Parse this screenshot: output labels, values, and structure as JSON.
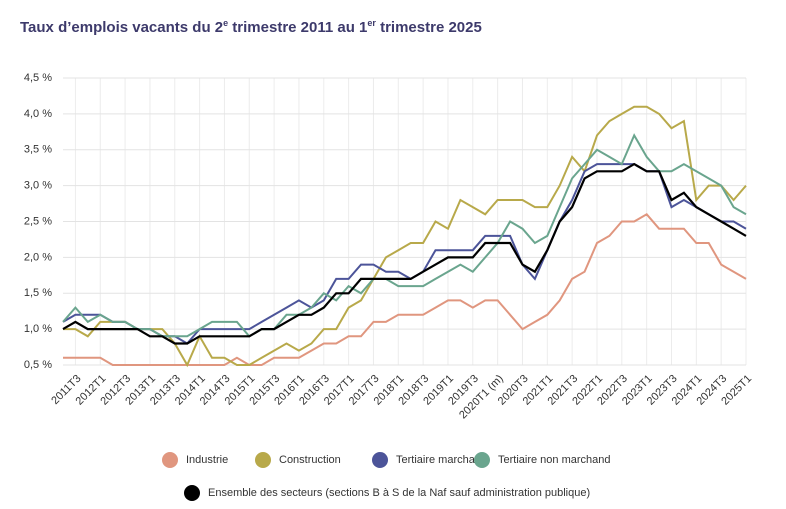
{
  "chart_data": {
    "type": "line",
    "title": [
      "Taux d’emplois vacants du 2",
      "e",
      " trimestre 2011 au 1",
      "er",
      " trimestre 2025"
    ],
    "categories": [
      null,
      "2011T3",
      null,
      "2012T1",
      null,
      "2012T3",
      null,
      "2013T1",
      null,
      "2013T3",
      null,
      "2014T1",
      null,
      "2014T3",
      null,
      "2015T1",
      null,
      "2015T3",
      null,
      "2016T1",
      null,
      "2016T3",
      null,
      "2017T1",
      null,
      "2017T3",
      null,
      "2018T1",
      null,
      "2018T3",
      null,
      "2019T1",
      null,
      "2019T3",
      null,
      "2020T1 (m)",
      null,
      "2020T3",
      null,
      "2021T1",
      null,
      "2021T3",
      null,
      "2022T1",
      null,
      "2022T3",
      null,
      "2023T1",
      null,
      "2023T3",
      null,
      "2024T1",
      null,
      "2024T3",
      null,
      "2025T1"
    ],
    "series": [
      {
        "name": "Industrie",
        "color": "#e0967f",
        "values": [
          0.6,
          0.6,
          0.6,
          0.6,
          0.5,
          0.5,
          0.5,
          0.5,
          0.5,
          0.5,
          0.5,
          0.5,
          0.5,
          0.5,
          0.6,
          0.5,
          0.5,
          0.6,
          0.6,
          0.6,
          0.7,
          0.8,
          0.8,
          0.9,
          0.9,
          1.1,
          1.1,
          1.2,
          1.2,
          1.2,
          1.3,
          1.4,
          1.4,
          1.3,
          1.4,
          1.4,
          1.2,
          1.0,
          1.1,
          1.2,
          1.4,
          1.7,
          1.8,
          2.2,
          2.3,
          2.5,
          2.5,
          2.6,
          2.4,
          2.4,
          2.4,
          2.2,
          2.2,
          1.9,
          1.8,
          1.7
        ]
      },
      {
        "name": "Construction",
        "color": "#b8a94a",
        "values": [
          1.0,
          1.0,
          0.9,
          1.1,
          1.1,
          1.1,
          1.0,
          1.0,
          1.0,
          0.8,
          0.5,
          0.9,
          0.6,
          0.6,
          0.5,
          0.5,
          0.6,
          0.7,
          0.8,
          0.7,
          0.8,
          1.0,
          1.0,
          1.3,
          1.4,
          1.7,
          2.0,
          2.1,
          2.2,
          2.2,
          2.5,
          2.4,
          2.8,
          2.7,
          2.6,
          2.8,
          2.8,
          2.8,
          2.7,
          2.7,
          3.0,
          3.4,
          3.2,
          3.7,
          3.9,
          4.0,
          4.1,
          4.1,
          4.0,
          3.8,
          3.9,
          2.8,
          3.0,
          3.0,
          2.8,
          3.0
        ]
      },
      {
        "name": "Tertiaire marchand",
        "color": "#4c5499",
        "values": [
          1.1,
          1.2,
          1.2,
          1.2,
          1.1,
          1.1,
          1.0,
          1.0,
          0.9,
          0.9,
          0.8,
          1.0,
          1.0,
          1.0,
          1.0,
          1.0,
          1.1,
          1.2,
          1.3,
          1.4,
          1.3,
          1.4,
          1.7,
          1.7,
          1.9,
          1.9,
          1.8,
          1.8,
          1.7,
          1.8,
          2.1,
          2.1,
          2.1,
          2.1,
          2.3,
          2.3,
          2.3,
          1.9,
          1.7,
          2.1,
          2.5,
          2.8,
          3.2,
          3.3,
          3.3,
          3.3,
          3.3,
          3.2,
          3.2,
          2.7,
          2.8,
          2.7,
          2.6,
          2.5,
          2.5,
          2.4
        ]
      },
      {
        "name": "Tertiaire non marchand",
        "color": "#6aa58e",
        "values": [
          1.1,
          1.3,
          1.1,
          1.2,
          1.1,
          1.1,
          1.0,
          1.0,
          0.9,
          0.9,
          0.9,
          1.0,
          1.1,
          1.1,
          1.1,
          0.9,
          1.0,
          1.0,
          1.2,
          1.2,
          1.3,
          1.5,
          1.4,
          1.6,
          1.5,
          1.7,
          1.7,
          1.6,
          1.6,
          1.6,
          1.7,
          1.8,
          1.9,
          1.8,
          2.0,
          2.2,
          2.5,
          2.4,
          2.2,
          2.3,
          2.7,
          3.1,
          3.3,
          3.5,
          3.4,
          3.3,
          3.7,
          3.4,
          3.2,
          3.2,
          3.3,
          3.2,
          3.1,
          3.0,
          2.7,
          2.6
        ]
      },
      {
        "name": "Ensemble des secteurs (sections B à S de la Naf sauf administration publique)",
        "color": "#000000",
        "values": [
          1.0,
          1.1,
          1.0,
          1.0,
          1.0,
          1.0,
          1.0,
          0.9,
          0.9,
          0.8,
          0.8,
          0.9,
          0.9,
          0.9,
          0.9,
          0.9,
          1.0,
          1.0,
          1.1,
          1.2,
          1.2,
          1.3,
          1.5,
          1.5,
          1.7,
          1.7,
          1.7,
          1.7,
          1.7,
          1.8,
          1.9,
          2.0,
          2.0,
          2.0,
          2.2,
          2.2,
          2.2,
          1.9,
          1.8,
          2.1,
          2.5,
          2.7,
          3.1,
          3.2,
          3.2,
          3.2,
          3.3,
          3.2,
          3.2,
          2.8,
          2.9,
          2.7,
          2.6,
          2.5,
          2.4,
          2.3
        ]
      }
    ],
    "ylim": [
      0.5,
      4.5
    ],
    "yticks": [
      {
        "value": 0.5,
        "label": "0,5 %"
      },
      {
        "value": 1.0,
        "label": "1,0 %"
      },
      {
        "value": 1.5,
        "label": "1,5 %"
      },
      {
        "value": 2.0,
        "label": "2,0 %"
      },
      {
        "value": 2.5,
        "label": "2,5 %"
      },
      {
        "value": 3.0,
        "label": "3,0 %"
      },
      {
        "value": 3.5,
        "label": "3,5 %"
      },
      {
        "value": 4.0,
        "label": "4,0 %"
      },
      {
        "value": 4.5,
        "label": "4,5 %"
      }
    ],
    "grid": true,
    "legend": "bottom"
  }
}
